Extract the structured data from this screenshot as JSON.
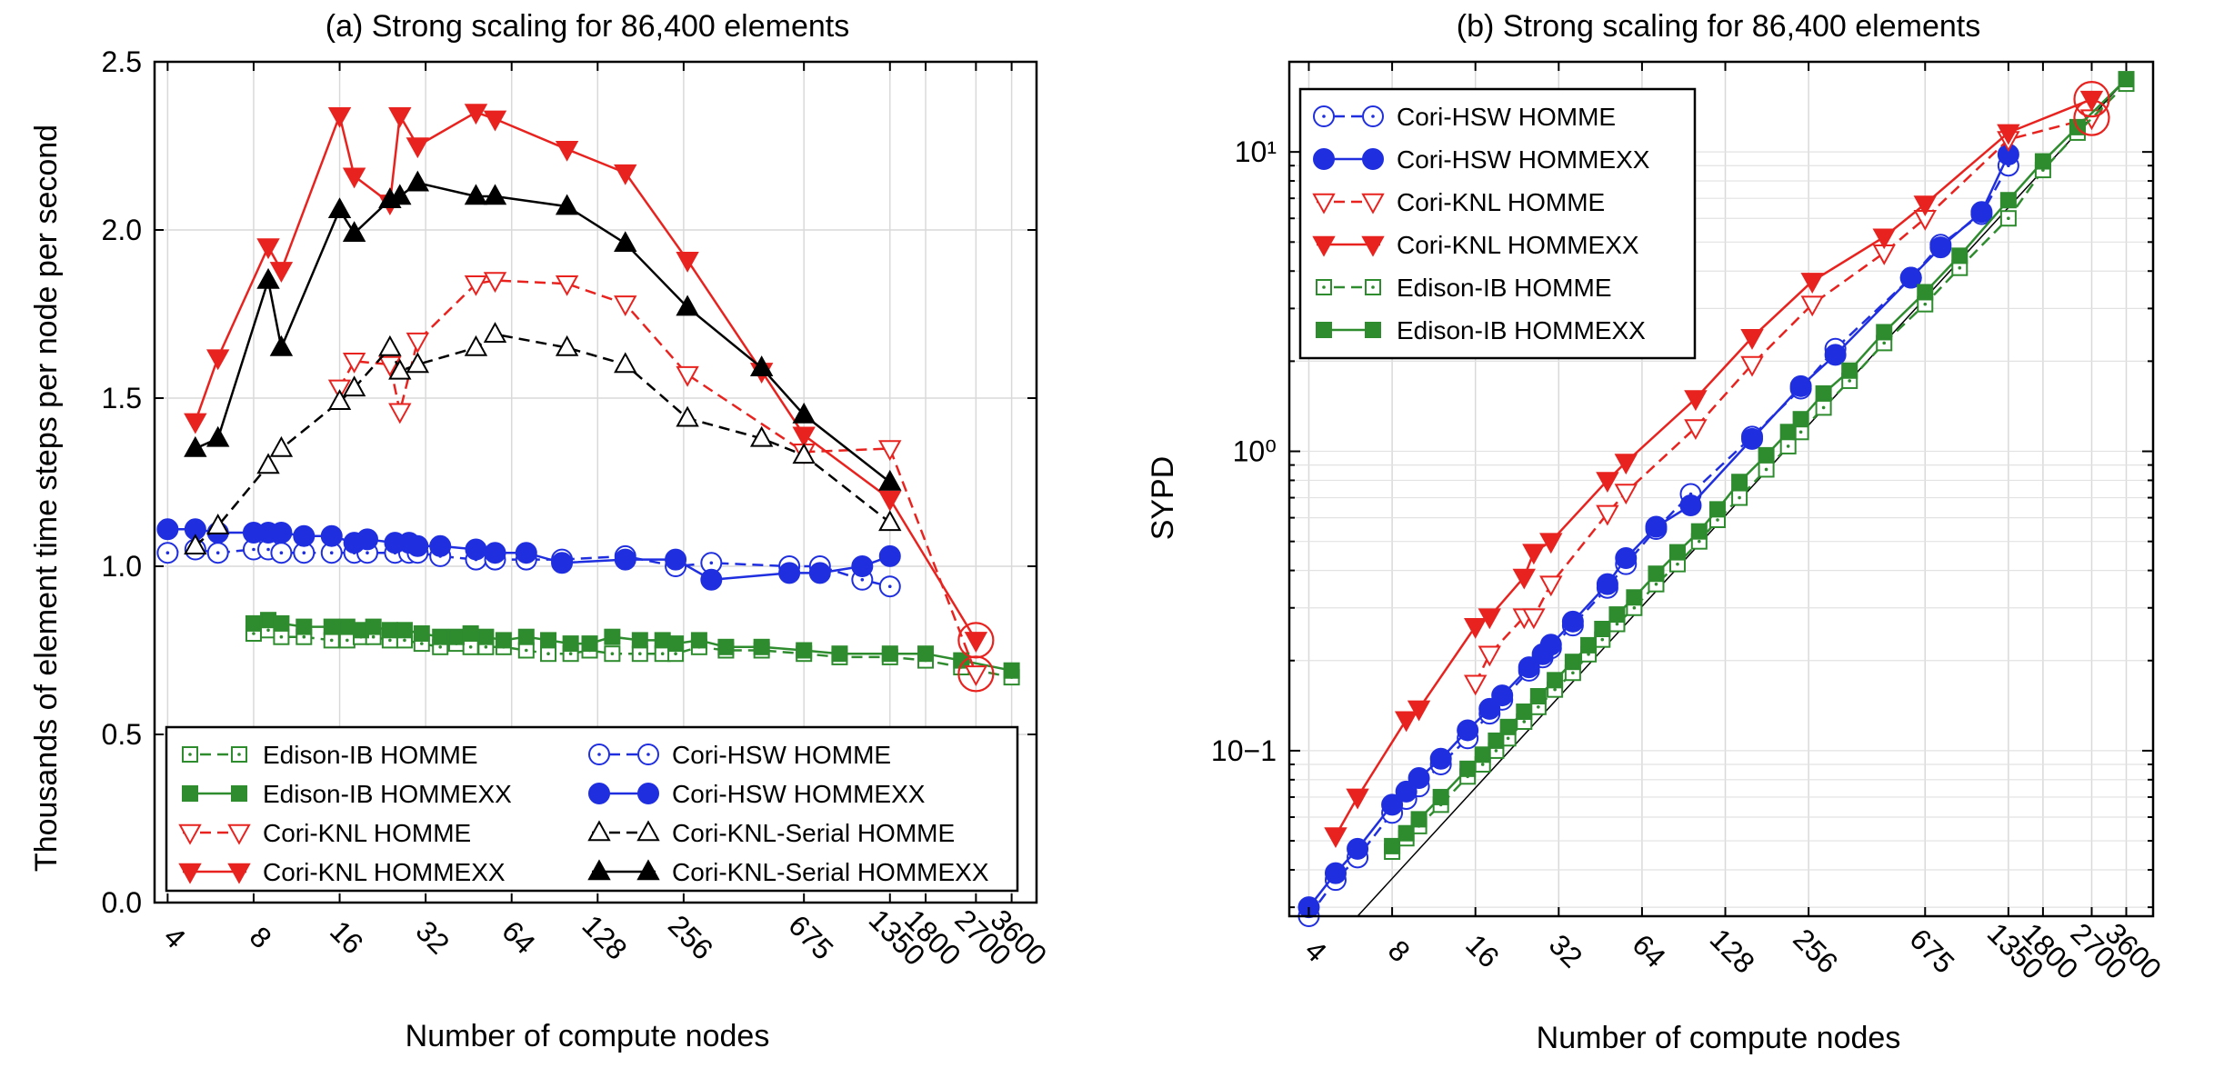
{
  "chart_data": [
    {
      "type": "line",
      "title": "(a)  Strong scaling for 86,400 elements",
      "xlabel": "Number of compute nodes",
      "ylabel": "Thousands of element  time  steps per node per second",
      "xscale": "log2",
      "xlim": [
        3.6,
        4400
      ],
      "ylim": [
        0,
        2.5
      ],
      "grid": true,
      "legend_position": "bottom",
      "x_tick_labels": [
        "4",
        "8",
        "16",
        "32",
        "64",
        "128",
        "256",
        "675",
        "1350",
        "1800",
        "2700",
        "3600"
      ],
      "y_tick_labels": [
        "0.0",
        "0.5",
        "1.0",
        "1.5",
        "2.0",
        "2.5"
      ],
      "series": [
        {
          "name": "Edison-IB HOMME",
          "color": "#2e8b2e",
          "style": "dashed",
          "marker": "square-dot",
          "filled": false,
          "x": [
            8,
            9,
            10,
            12,
            15,
            17,
            19,
            21,
            24,
            27,
            31,
            36,
            41,
            46,
            52,
            60,
            72,
            86,
            103,
            120,
            144,
            180,
            216,
            240,
            290,
            360,
            480,
            675,
            900,
            1350,
            1800,
            2400,
            3600
          ],
          "y": [
            0.8,
            0.81,
            0.79,
            0.79,
            0.78,
            0.78,
            0.79,
            0.79,
            0.78,
            0.78,
            0.77,
            0.76,
            0.77,
            0.76,
            0.76,
            0.76,
            0.75,
            0.74,
            0.74,
            0.75,
            0.74,
            0.74,
            0.74,
            0.74,
            0.76,
            0.75,
            0.75,
            0.74,
            0.73,
            0.73,
            0.72,
            0.7,
            0.67
          ]
        },
        {
          "name": "Edison-IB HOMMEXX",
          "color": "#2e8b2e",
          "style": "solid",
          "marker": "square",
          "filled": true,
          "x": [
            8,
            9,
            10,
            12,
            15,
            17,
            19,
            21,
            24,
            27,
            31,
            36,
            41,
            46,
            52,
            60,
            72,
            86,
            103,
            120,
            144,
            180,
            216,
            240,
            290,
            360,
            480,
            675,
            900,
            1350,
            1800,
            2400,
            3600
          ],
          "y": [
            0.83,
            0.84,
            0.83,
            0.82,
            0.82,
            0.82,
            0.81,
            0.82,
            0.81,
            0.81,
            0.8,
            0.79,
            0.79,
            0.8,
            0.79,
            0.78,
            0.79,
            0.78,
            0.77,
            0.77,
            0.79,
            0.78,
            0.78,
            0.77,
            0.78,
            0.76,
            0.76,
            0.75,
            0.74,
            0.74,
            0.74,
            0.72,
            0.69
          ]
        },
        {
          "name": "Cori-KNL HOMME",
          "color": "#e8231f",
          "style": "dashed",
          "marker": "triangle-down",
          "filled": false,
          "x": [
            16,
            18,
            24,
            26,
            30,
            48,
            56,
            100,
            160,
            264,
            675,
            1350,
            2700
          ],
          "y": [
            1.53,
            1.61,
            1.6,
            1.46,
            1.67,
            1.84,
            1.85,
            1.84,
            1.78,
            1.57,
            1.34,
            1.35,
            0.68
          ]
        },
        {
          "name": "Cori-KNL HOMMEXX",
          "color": "#e8231f",
          "style": "solid",
          "marker": "triangle-down",
          "filled": true,
          "x": [
            5,
            6,
            9,
            10,
            16,
            18,
            24,
            26,
            30,
            48,
            56,
            100,
            160,
            264,
            480,
            675,
            1350,
            2700
          ],
          "y": [
            1.43,
            1.62,
            1.95,
            1.88,
            2.34,
            2.16,
            2.08,
            2.34,
            2.25,
            2.35,
            2.33,
            2.24,
            2.17,
            1.91,
            1.58,
            1.39,
            1.2,
            0.78
          ]
        },
        {
          "name": "Cori-HSW HOMME",
          "color": "#1f2fe0",
          "style": "dashed",
          "marker": "circle-dot",
          "filled": false,
          "x": [
            4,
            5,
            6,
            8,
            9,
            10,
            12,
            15,
            18,
            20,
            25,
            28,
            30,
            36,
            48,
            56,
            72,
            96,
            160,
            240,
            320,
            600,
            768,
            1080,
            1350
          ],
          "y": [
            1.04,
            1.05,
            1.04,
            1.05,
            1.05,
            1.04,
            1.04,
            1.04,
            1.04,
            1.04,
            1.04,
            1.04,
            1.04,
            1.03,
            1.02,
            1.02,
            1.02,
            1.02,
            1.03,
            1.0,
            1.01,
            1.0,
            1.0,
            0.96,
            0.94
          ]
        },
        {
          "name": "Cori-HSW HOMMEXX",
          "color": "#1f2fe0",
          "style": "solid",
          "marker": "circle",
          "filled": true,
          "x": [
            4,
            5,
            6,
            8,
            9,
            10,
            12,
            15,
            18,
            20,
            25,
            28,
            30,
            36,
            48,
            56,
            72,
            96,
            160,
            240,
            320,
            600,
            768,
            1080,
            1350
          ],
          "y": [
            1.11,
            1.11,
            1.1,
            1.1,
            1.1,
            1.1,
            1.09,
            1.09,
            1.07,
            1.08,
            1.07,
            1.07,
            1.06,
            1.06,
            1.05,
            1.04,
            1.04,
            1.01,
            1.02,
            1.02,
            0.96,
            0.98,
            0.98,
            1.0,
            1.03
          ]
        },
        {
          "name": "Cori-KNL-Serial HOMME",
          "color": "#000000",
          "style": "dashed",
          "marker": "triangle-up",
          "filled": false,
          "x": [
            5,
            6,
            9,
            10,
            16,
            18,
            24,
            26,
            30,
            48,
            56,
            100,
            160,
            264,
            480,
            675,
            1350
          ],
          "y": [
            1.06,
            1.12,
            1.3,
            1.35,
            1.49,
            1.53,
            1.65,
            1.58,
            1.6,
            1.65,
            1.69,
            1.65,
            1.6,
            1.44,
            1.38,
            1.33,
            1.13
          ]
        },
        {
          "name": "Cori-KNL-Serial HOMMEXX",
          "color": "#000000",
          "style": "solid",
          "marker": "triangle-up",
          "filled": true,
          "x": [
            5,
            6,
            9,
            10,
            16,
            18,
            24,
            26,
            30,
            48,
            56,
            100,
            160,
            264,
            480,
            675,
            1350
          ],
          "y": [
            1.35,
            1.38,
            1.85,
            1.65,
            2.06,
            1.99,
            2.09,
            2.1,
            2.14,
            2.1,
            2.1,
            2.07,
            1.96,
            1.77,
            1.59,
            1.45,
            1.25
          ]
        }
      ],
      "highlights": [
        {
          "x": 2700,
          "y": 0.78,
          "color": "#e8231f"
        },
        {
          "x": 2700,
          "y": 0.68,
          "color": "#e8231f"
        }
      ]
    },
    {
      "type": "line",
      "title": "(b)  Strong scaling for 86,400 elements",
      "xlabel": "Number of compute nodes",
      "ylabel": "SYPD",
      "xscale": "log2",
      "yscale": "log10",
      "xlim": [
        3.4,
        4500
      ],
      "ylim": [
        0.028,
        20
      ],
      "grid": true,
      "legend_position": "top-left",
      "x_tick_labels": [
        "4",
        "8",
        "16",
        "32",
        "64",
        "128",
        "256",
        "675",
        "1350",
        "1800",
        "2700",
        "3600"
      ],
      "y_tick_labels": [
        "10−1",
        "10⁰",
        "10¹"
      ],
      "series": [
        {
          "name": "Cori-HSW HOMME",
          "color": "#1f2fe0",
          "style": "dashed",
          "marker": "circle-dot",
          "filled": false,
          "x": [
            4,
            5,
            6,
            8,
            9,
            10,
            12,
            15,
            18,
            20,
            25,
            28,
            30,
            36,
            48,
            56,
            72,
            96,
            160,
            240,
            320,
            600,
            768,
            1080,
            1350
          ],
          "y": [
            0.028,
            0.037,
            0.044,
            0.062,
            0.069,
            0.076,
            0.09,
            0.11,
            0.133,
            0.148,
            0.185,
            0.205,
            0.22,
            0.262,
            0.35,
            0.42,
            0.55,
            0.72,
            1.12,
            1.62,
            2.2,
            3.8,
            4.9,
            6.2,
            9.0
          ]
        },
        {
          "name": "Cori-HSW HOMMEXX",
          "color": "#1f2fe0",
          "style": "solid",
          "marker": "circle",
          "filled": true,
          "x": [
            4,
            5,
            6,
            8,
            9,
            10,
            12,
            15,
            18,
            20,
            25,
            28,
            30,
            36,
            48,
            56,
            72,
            96,
            160,
            240,
            320,
            600,
            768,
            1080,
            1350
          ],
          "y": [
            0.03,
            0.039,
            0.047,
            0.066,
            0.073,
            0.081,
            0.094,
            0.117,
            0.138,
            0.153,
            0.19,
            0.21,
            0.226,
            0.27,
            0.36,
            0.44,
            0.56,
            0.66,
            1.1,
            1.65,
            2.1,
            3.8,
            4.8,
            6.3,
            9.8
          ]
        },
        {
          "name": "Cori-KNL HOMME",
          "color": "#e8231f",
          "style": "dashed",
          "marker": "triangle-down",
          "filled": false,
          "x": [
            16,
            18,
            24,
            26,
            30,
            48,
            56,
            100,
            160,
            264,
            480,
            675,
            1350,
            2700
          ],
          "y": [
            0.168,
            0.21,
            0.28,
            0.28,
            0.36,
            0.62,
            0.73,
            1.2,
            1.95,
            3.1,
            4.6,
            6.0,
            11.0,
            13.0
          ]
        },
        {
          "name": "Cori-KNL HOMMEXX",
          "color": "#e8231f",
          "style": "solid",
          "marker": "triangle-down",
          "filled": true,
          "x": [
            5,
            6,
            9,
            10,
            16,
            18,
            24,
            26,
            30,
            48,
            56,
            100,
            160,
            264,
            480,
            675,
            1350,
            2700
          ],
          "y": [
            0.052,
            0.07,
            0.127,
            0.138,
            0.26,
            0.28,
            0.38,
            0.46,
            0.5,
            0.8,
            0.92,
            1.5,
            2.4,
            3.7,
            5.2,
            6.7,
            11.6,
            15.0
          ]
        },
        {
          "name": "Edison-IB HOMME",
          "color": "#2e8b2e",
          "style": "dashed",
          "marker": "square-dot",
          "filled": false,
          "x": [
            8,
            9,
            10,
            12,
            15,
            17,
            19,
            21,
            24,
            27,
            31,
            36,
            41,
            46,
            52,
            60,
            72,
            86,
            103,
            120,
            144,
            180,
            216,
            240,
            290,
            360,
            480,
            675,
            900,
            1350,
            1800,
            2400,
            3600
          ],
          "y": [
            0.046,
            0.051,
            0.056,
            0.066,
            0.082,
            0.09,
            0.1,
            0.11,
            0.125,
            0.14,
            0.16,
            0.182,
            0.21,
            0.235,
            0.265,
            0.3,
            0.36,
            0.42,
            0.5,
            0.59,
            0.7,
            0.87,
            1.04,
            1.16,
            1.4,
            1.72,
            2.3,
            3.1,
            4.1,
            6.0,
            8.7,
            11.6,
            16.9
          ]
        },
        {
          "name": "Edison-IB HOMMEXX",
          "color": "#2e8b2e",
          "style": "solid",
          "marker": "square",
          "filled": true,
          "x": [
            8,
            9,
            10,
            12,
            15,
            17,
            19,
            21,
            24,
            27,
            31,
            36,
            41,
            46,
            52,
            60,
            72,
            86,
            103,
            120,
            144,
            180,
            216,
            240,
            290,
            360,
            480,
            675,
            900,
            1350,
            1800,
            2400,
            3600
          ],
          "y": [
            0.048,
            0.053,
            0.059,
            0.07,
            0.087,
            0.097,
            0.108,
            0.12,
            0.135,
            0.152,
            0.172,
            0.198,
            0.225,
            0.255,
            0.285,
            0.325,
            0.39,
            0.46,
            0.54,
            0.64,
            0.79,
            0.97,
            1.16,
            1.28,
            1.56,
            1.86,
            2.5,
            3.4,
            4.5,
            6.9,
            9.3,
            12.1,
            17.5
          ]
        }
      ],
      "reference_line": {
        "x": [
          6,
          3600
        ],
        "y": [
          0.028,
          17.5
        ],
        "color": "#000000"
      },
      "highlights": [
        {
          "x": 2700,
          "y": 15.0,
          "color": "#e8231f"
        },
        {
          "x": 2700,
          "y": 13.0,
          "color": "#e8231f"
        }
      ]
    }
  ]
}
